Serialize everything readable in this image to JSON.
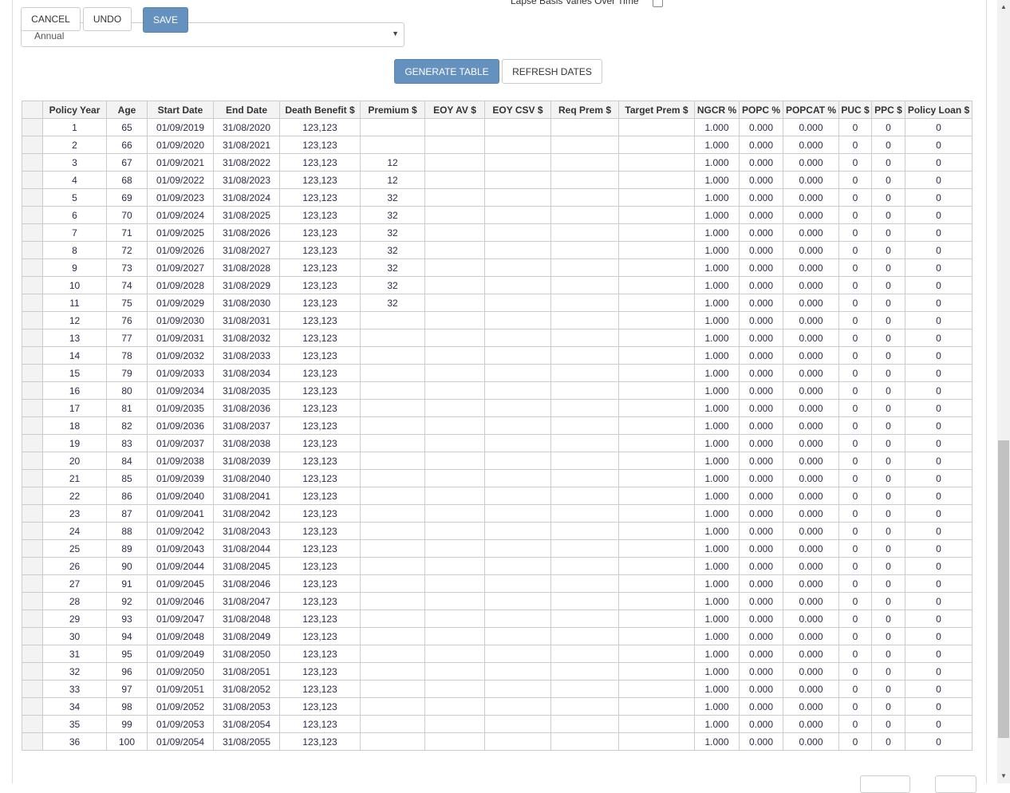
{
  "toolbar": {
    "cancel": "CANCEL",
    "undo": "UNDO",
    "save": "SAVE"
  },
  "frequency_select": {
    "value": "Annual"
  },
  "lapse": {
    "label": "Lapse Basis Varies Over Time",
    "checked": false
  },
  "actions": {
    "generate": "GENERATE TABLE",
    "refresh": "REFRESH DATES"
  },
  "table": {
    "columns": [
      "",
      "Policy Year",
      "Age",
      "Start Date",
      "End Date",
      "Death Benefit $",
      "Premium $",
      "EOY AV $",
      "EOY CSV $",
      "Req Prem $",
      "Target Prem $",
      "NGCR %",
      "POPC %",
      "POPCAT %",
      "PUC $",
      "PPC $",
      "Policy Loan $"
    ],
    "rows": [
      [
        "1",
        "65",
        "01/09/2019",
        "31/08/2020",
        "123,123",
        ""
      ],
      [
        "2",
        "66",
        "01/09/2020",
        "31/08/2021",
        "123,123",
        ""
      ],
      [
        "3",
        "67",
        "01/09/2021",
        "31/08/2022",
        "123,123",
        "12"
      ],
      [
        "4",
        "68",
        "01/09/2022",
        "31/08/2023",
        "123,123",
        "12"
      ],
      [
        "5",
        "69",
        "01/09/2023",
        "31/08/2024",
        "123,123",
        "32"
      ],
      [
        "6",
        "70",
        "01/09/2024",
        "31/08/2025",
        "123,123",
        "32"
      ],
      [
        "7",
        "71",
        "01/09/2025",
        "31/08/2026",
        "123,123",
        "32"
      ],
      [
        "8",
        "72",
        "01/09/2026",
        "31/08/2027",
        "123,123",
        "32"
      ],
      [
        "9",
        "73",
        "01/09/2027",
        "31/08/2028",
        "123,123",
        "32"
      ],
      [
        "10",
        "74",
        "01/09/2028",
        "31/08/2029",
        "123,123",
        "32"
      ],
      [
        "11",
        "75",
        "01/09/2029",
        "31/08/2030",
        "123,123",
        "32"
      ],
      [
        "12",
        "76",
        "01/09/2030",
        "31/08/2031",
        "123,123",
        ""
      ],
      [
        "13",
        "77",
        "01/09/2031",
        "31/08/2032",
        "123,123",
        ""
      ],
      [
        "14",
        "78",
        "01/09/2032",
        "31/08/2033",
        "123,123",
        ""
      ],
      [
        "15",
        "79",
        "01/09/2033",
        "31/08/2034",
        "123,123",
        ""
      ],
      [
        "16",
        "80",
        "01/09/2034",
        "31/08/2035",
        "123,123",
        ""
      ],
      [
        "17",
        "81",
        "01/09/2035",
        "31/08/2036",
        "123,123",
        ""
      ],
      [
        "18",
        "82",
        "01/09/2036",
        "31/08/2037",
        "123,123",
        ""
      ],
      [
        "19",
        "83",
        "01/09/2037",
        "31/08/2038",
        "123,123",
        ""
      ],
      [
        "20",
        "84",
        "01/09/2038",
        "31/08/2039",
        "123,123",
        ""
      ],
      [
        "21",
        "85",
        "01/09/2039",
        "31/08/2040",
        "123,123",
        ""
      ],
      [
        "22",
        "86",
        "01/09/2040",
        "31/08/2041",
        "123,123",
        ""
      ],
      [
        "23",
        "87",
        "01/09/2041",
        "31/08/2042",
        "123,123",
        ""
      ],
      [
        "24",
        "88",
        "01/09/2042",
        "31/08/2043",
        "123,123",
        ""
      ],
      [
        "25",
        "89",
        "01/09/2043",
        "31/08/2044",
        "123,123",
        ""
      ],
      [
        "26",
        "90",
        "01/09/2044",
        "31/08/2045",
        "123,123",
        ""
      ],
      [
        "27",
        "91",
        "01/09/2045",
        "31/08/2046",
        "123,123",
        ""
      ],
      [
        "28",
        "92",
        "01/09/2046",
        "31/08/2047",
        "123,123",
        ""
      ],
      [
        "29",
        "93",
        "01/09/2047",
        "31/08/2048",
        "123,123",
        ""
      ],
      [
        "30",
        "94",
        "01/09/2048",
        "31/08/2049",
        "123,123",
        ""
      ],
      [
        "31",
        "95",
        "01/09/2049",
        "31/08/2050",
        "123,123",
        ""
      ],
      [
        "32",
        "96",
        "01/09/2050",
        "31/08/2051",
        "123,123",
        ""
      ],
      [
        "33",
        "97",
        "01/09/2051",
        "31/08/2052",
        "123,123",
        ""
      ],
      [
        "34",
        "98",
        "01/09/2052",
        "31/08/2053",
        "123,123",
        ""
      ],
      [
        "35",
        "99",
        "01/09/2053",
        "31/08/2054",
        "123,123",
        ""
      ],
      [
        "36",
        "100",
        "01/09/2054",
        "31/08/2055",
        "123,123",
        ""
      ]
    ],
    "row_defaults": {
      "eoy_av": "",
      "eoy_csv": "",
      "req_prem": "",
      "target_prem": "",
      "ngcr": "1.000",
      "popc": "0.000",
      "popcat": "0.000",
      "puc": "0",
      "ppc": "0",
      "policy_loan": "0"
    }
  },
  "colors": {
    "primary_button": "#6591be",
    "header_bg": "#f3f3f3",
    "border": "#cccccc"
  }
}
